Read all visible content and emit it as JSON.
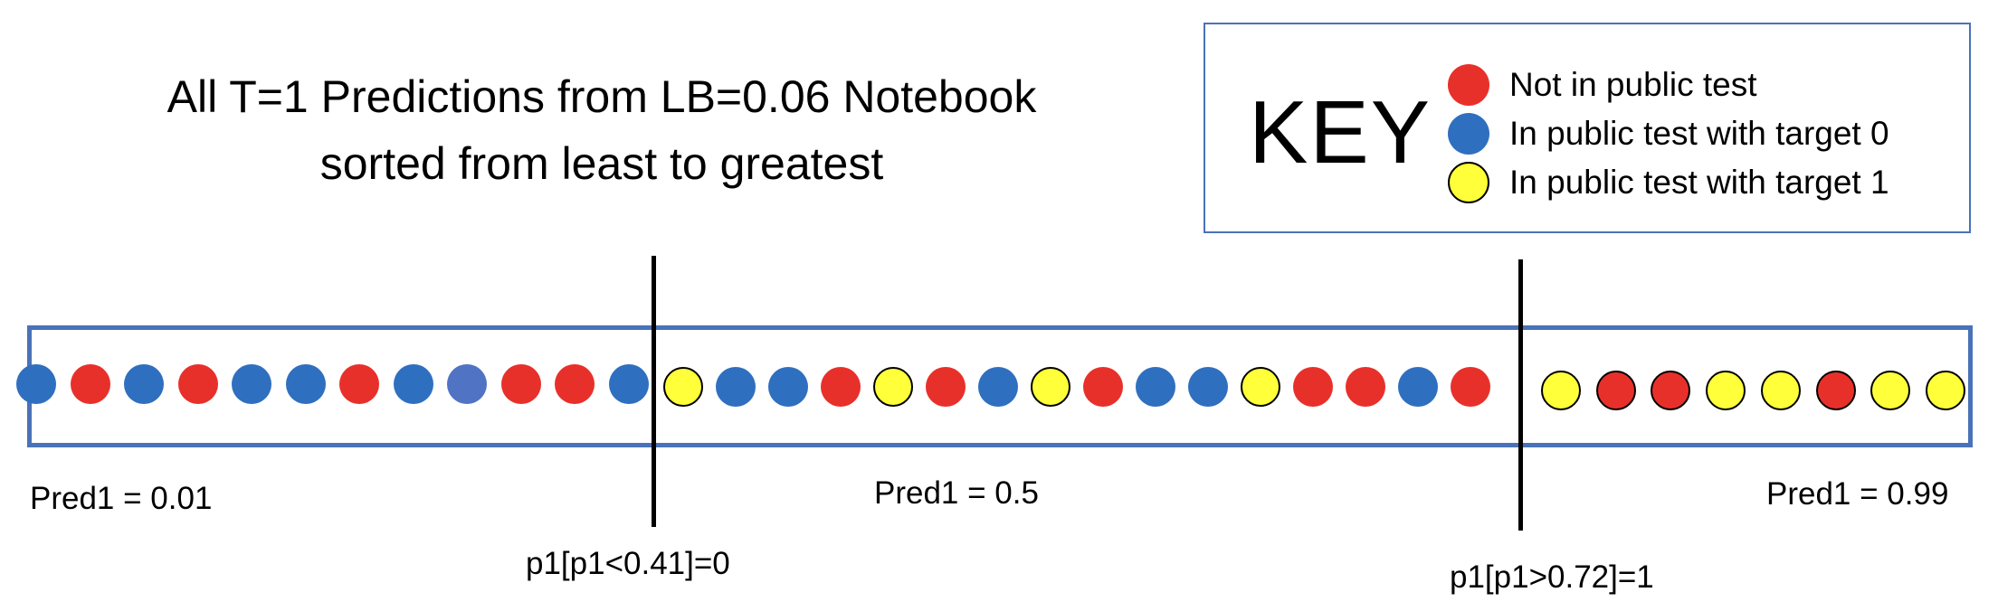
{
  "title": {
    "line1": "All T=1 Predictions from LB=0.06 Notebook",
    "line2": "sorted from least to greatest"
  },
  "key": {
    "heading": "KEY",
    "entries": [
      {
        "label": "Not in public test",
        "color": "#e8302a"
      },
      {
        "label": "In public test with target 0",
        "color": "#2f6fbf"
      },
      {
        "label": "In public test with target 1",
        "color": "#ffff3a"
      }
    ]
  },
  "colors": {
    "red": "#e8302a",
    "blue": "#2f6fbf",
    "yellow": "#ffff3a",
    "border": "#4a72b8"
  },
  "dots": {
    "left": [
      "blue",
      "red",
      "blue",
      "red",
      "blue",
      "blue",
      "red",
      "blue",
      "blue-alt",
      "red",
      "red",
      "blue"
    ],
    "middle": [
      "yellow",
      "blue",
      "blue",
      "red",
      "yellow",
      "red",
      "blue",
      "yellow",
      "red",
      "blue",
      "blue",
      "yellow",
      "red",
      "red",
      "blue",
      "red"
    ],
    "right": [
      "yellow",
      "red-outlined",
      "red-outlined",
      "yellow",
      "yellow",
      "red-outlined",
      "yellow",
      "yellow"
    ]
  },
  "labels": {
    "pred_low": "Pred1 = 0.01",
    "pred_mid": "Pred1 = 0.5",
    "pred_high": "Pred1 = 0.99",
    "threshold_low": "p1[p1<0.41]=0",
    "threshold_high": "p1[p1>0.72]=1"
  }
}
